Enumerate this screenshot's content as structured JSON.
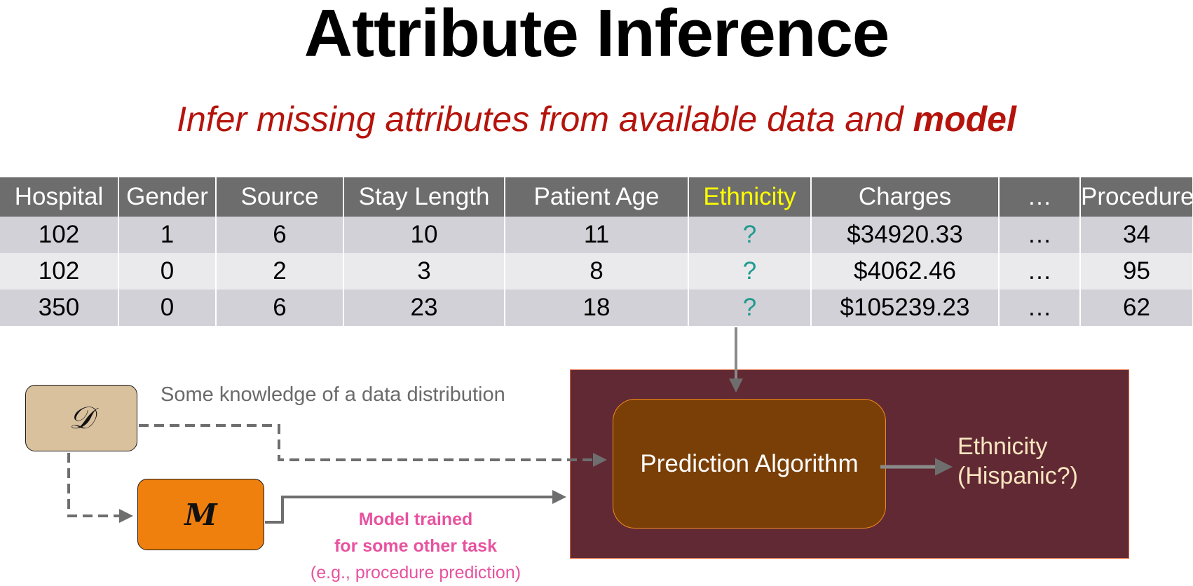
{
  "title": "Attribute Inference",
  "subtitle": {
    "text": "Infer missing attributes from available data and ",
    "emphasis": "model"
  },
  "table": {
    "columns": [
      "Hospital",
      "Gender",
      "Source",
      "Stay Length",
      "Patient Age",
      "Ethnicity",
      "Charges",
      "…",
      "Procedure"
    ],
    "highlight_column": "Ethnicity",
    "rows": [
      [
        "102",
        "1",
        "6",
        "10",
        "11",
        "?",
        "$34920.33",
        "…",
        "34"
      ],
      [
        "102",
        "0",
        "2",
        "3",
        "8",
        "?",
        "$4062.46",
        "…",
        "95"
      ],
      [
        "350",
        "0",
        "6",
        "23",
        "18",
        "?",
        "$105239.23",
        "…",
        "62"
      ]
    ]
  },
  "diagram": {
    "distribution_symbol": "𝒟",
    "model_symbol": "M",
    "knowledge_label": "Some knowledge of a data distribution",
    "algorithm_label": "Prediction Algorithm",
    "output_line1": "Ethnicity",
    "output_line2": "(Hispanic?)",
    "model_note_line1": "Model trained",
    "model_note_line2": "for some other task",
    "model_note_line3": "(e.g., procedure prediction)"
  },
  "colors": {
    "title": "#000000",
    "subtitle": "#b5140c",
    "header_bg": "#6d6d6d",
    "highlight": "#ffff00",
    "unknown": "#1e9a8e",
    "distribution_box": "#d9c19e",
    "model_box": "#f0800e",
    "outer_box": "#602934",
    "algorithm_box": "#7a3f06",
    "output_text": "#fae5bf",
    "model_note": "#e8529f",
    "arrow": "#6e6e6e"
  }
}
